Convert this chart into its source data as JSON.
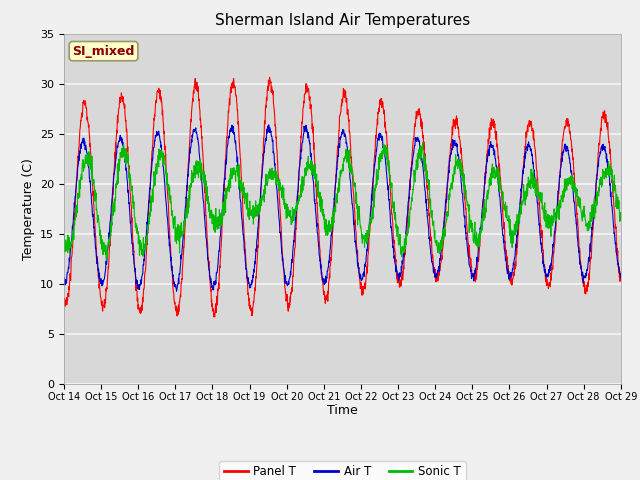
{
  "title": "Sherman Island Air Temperatures",
  "xlabel": "Time",
  "ylabel": "Temperature (C)",
  "ylim": [
    0,
    35
  ],
  "yticks": [
    0,
    5,
    10,
    15,
    20,
    25,
    30,
    35
  ],
  "x_tick_labels": [
    "Oct 14",
    "Oct 15",
    "Oct 16",
    "Oct 17",
    "Oct 18",
    "Oct 19",
    "Oct 20",
    "Oct 21",
    "Oct 22",
    "Oct 23",
    "Oct 24",
    "Oct 25",
    "Oct 26",
    "Oct 27",
    "Oct 28",
    "Oct 29"
  ],
  "annotation_text": "SI_mixed",
  "annotation_color": "#8b0000",
  "annotation_bg": "#ffffcc",
  "panel_t_color": "#ff0000",
  "air_t_color": "#0000cc",
  "sonic_t_color": "#00bb00",
  "plot_bg_color": "#d8d8d8",
  "outer_bg": "#f0f0f0",
  "grid_color": "#f5f5f5",
  "legend_labels": [
    "Panel T",
    "Air T",
    "Sonic T"
  ],
  "n_days": 15,
  "n_points": 2000,
  "figwidth": 6.4,
  "figheight": 4.8,
  "dpi": 100
}
